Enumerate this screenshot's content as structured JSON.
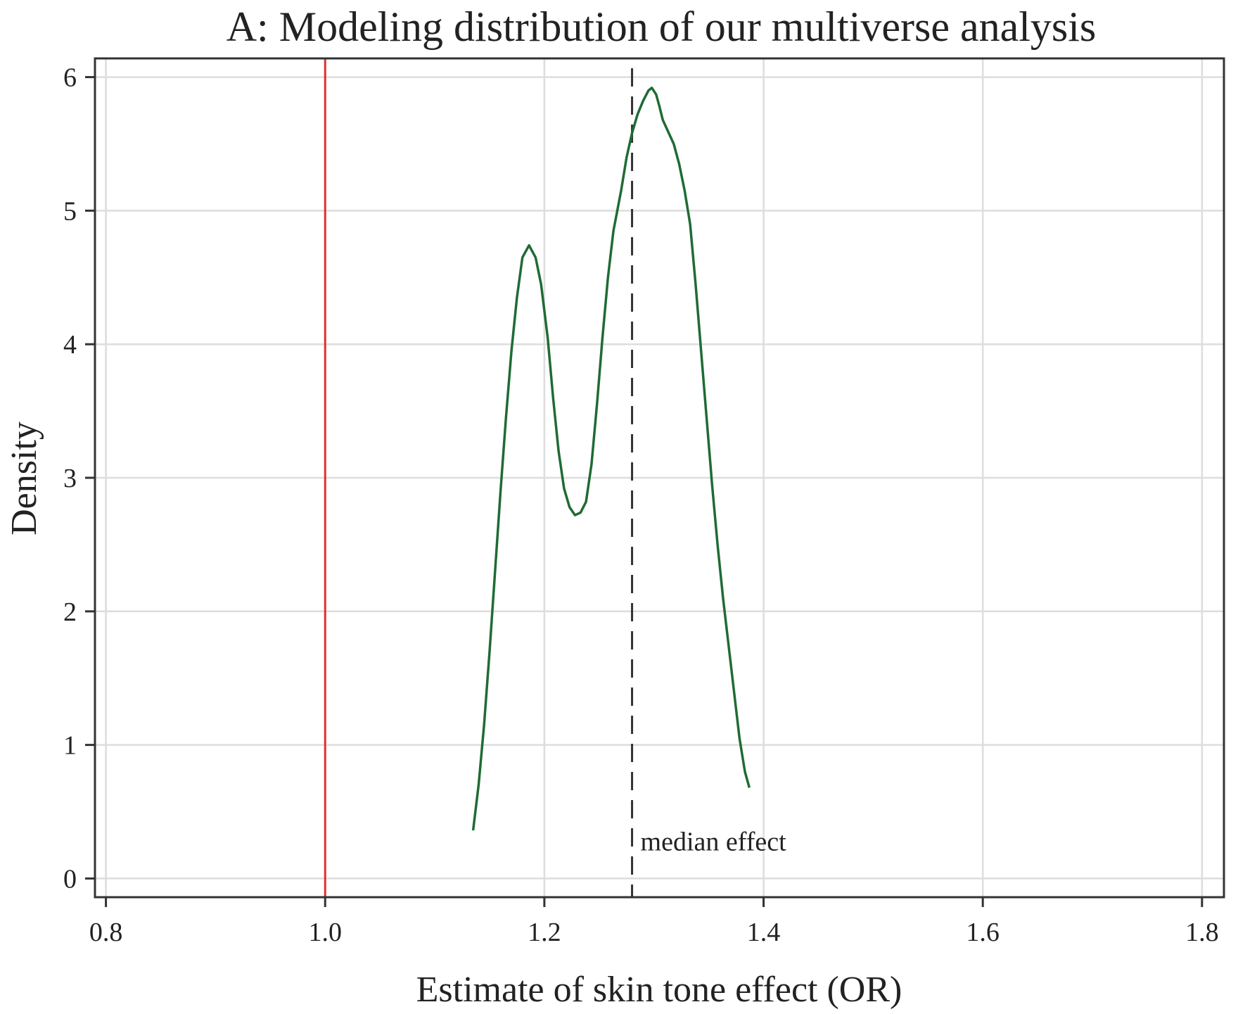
{
  "chart_data": {
    "type": "line",
    "title": "A: Modeling distribution of our multiverse analysis",
    "xlabel": "Estimate of skin tone effect (OR)",
    "ylabel": "Density",
    "xlim": [
      0.79,
      1.82
    ],
    "ylim": [
      -0.14,
      6.14
    ],
    "grid": true,
    "x_ticks": [
      0.8,
      1.0,
      1.2,
      1.4,
      1.6,
      1.8
    ],
    "x_tick_labels": [
      "0.8",
      "1.0",
      "1.2",
      "1.4",
      "1.6",
      "1.8"
    ],
    "y_ticks": [
      0,
      1,
      2,
      3,
      4,
      5,
      6
    ],
    "y_tick_labels": [
      "0",
      "1",
      "2",
      "3",
      "4",
      "5",
      "6"
    ],
    "series": [
      {
        "color": "#1f6b35",
        "points": [
          [
            1.135,
            0.36
          ],
          [
            1.14,
            0.7
          ],
          [
            1.145,
            1.15
          ],
          [
            1.15,
            1.7
          ],
          [
            1.155,
            2.3
          ],
          [
            1.16,
            2.9
          ],
          [
            1.165,
            3.45
          ],
          [
            1.17,
            3.95
          ],
          [
            1.175,
            4.35
          ],
          [
            1.18,
            4.65
          ],
          [
            1.186,
            4.74
          ],
          [
            1.192,
            4.65
          ],
          [
            1.197,
            4.45
          ],
          [
            1.203,
            4.05
          ],
          [
            1.208,
            3.6
          ],
          [
            1.213,
            3.2
          ],
          [
            1.218,
            2.92
          ],
          [
            1.223,
            2.78
          ],
          [
            1.228,
            2.72
          ],
          [
            1.233,
            2.74
          ],
          [
            1.238,
            2.82
          ],
          [
            1.243,
            3.1
          ],
          [
            1.248,
            3.55
          ],
          [
            1.253,
            4.05
          ],
          [
            1.258,
            4.5
          ],
          [
            1.263,
            4.85
          ],
          [
            1.27,
            5.15
          ],
          [
            1.275,
            5.4
          ],
          [
            1.28,
            5.58
          ],
          [
            1.285,
            5.72
          ],
          [
            1.29,
            5.82
          ],
          [
            1.295,
            5.9
          ],
          [
            1.298,
            5.92
          ],
          [
            1.302,
            5.87
          ],
          [
            1.305,
            5.78
          ],
          [
            1.308,
            5.68
          ],
          [
            1.318,
            5.5
          ],
          [
            1.323,
            5.35
          ],
          [
            1.328,
            5.15
          ],
          [
            1.333,
            4.9
          ],
          [
            1.338,
            4.45
          ],
          [
            1.343,
            3.95
          ],
          [
            1.348,
            3.45
          ],
          [
            1.353,
            2.95
          ],
          [
            1.358,
            2.5
          ],
          [
            1.363,
            2.1
          ],
          [
            1.368,
            1.75
          ],
          [
            1.373,
            1.4
          ],
          [
            1.378,
            1.05
          ],
          [
            1.383,
            0.8
          ],
          [
            1.387,
            0.68
          ]
        ]
      }
    ],
    "reference_lines": [
      {
        "x": 1.0,
        "color": "#e03030",
        "style": "solid"
      },
      {
        "x": 1.28,
        "color": "#333333",
        "style": "dashed",
        "label": "median effect"
      }
    ]
  }
}
